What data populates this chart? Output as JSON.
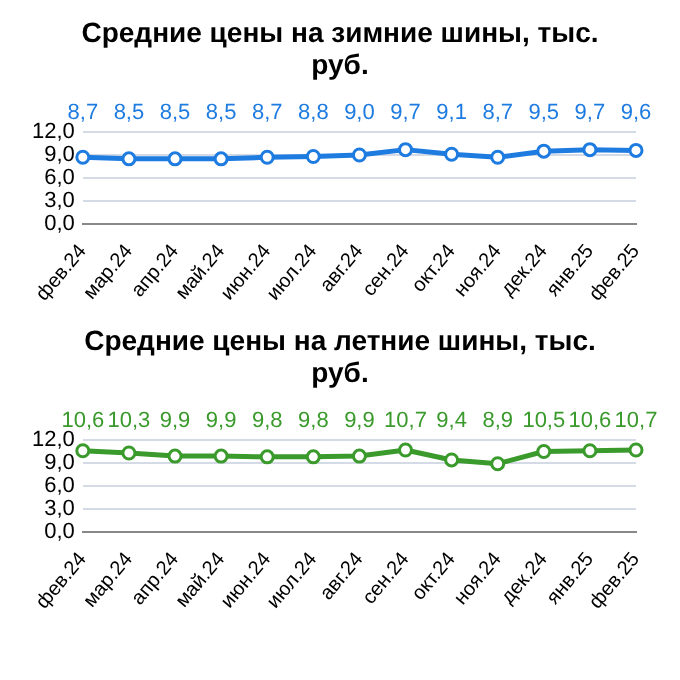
{
  "chart_data": [
    {
      "type": "line",
      "title": "Средние цены на зимние шины, тыс. руб.",
      "categories": [
        "фев.24",
        "мар.24",
        "апр.24",
        "май.24",
        "июн.24",
        "июл.24",
        "авг.24",
        "сен.24",
        "окт.24",
        "ноя.24",
        "дек.24",
        "янв.25",
        "фев.25"
      ],
      "series": [
        {
          "color": "#1e7be0",
          "values": [
            8.7,
            8.5,
            8.5,
            8.5,
            8.7,
            8.8,
            9.0,
            9.7,
            9.1,
            8.7,
            9.5,
            9.7,
            9.6
          ],
          "value_labels": [
            "8,7",
            "8,5",
            "8,5",
            "8,5",
            "8,7",
            "8,8",
            "9,0",
            "9,7",
            "9,1",
            "8,7",
            "9,5",
            "9,7",
            "9,6"
          ]
        }
      ],
      "ylim": [
        0,
        12
      ],
      "yticks": [
        {
          "value": 0,
          "label": "0,0"
        },
        {
          "value": 3,
          "label": "3,0"
        },
        {
          "value": 6,
          "label": "6,0"
        },
        {
          "value": 9,
          "label": "9,0"
        },
        {
          "value": 12,
          "label": "12,0"
        }
      ],
      "grid": "y",
      "marker": "circle",
      "legend": false
    },
    {
      "type": "line",
      "title": "Средние цены на летние шины, тыс. руб.",
      "categories": [
        "фев.24",
        "мар.24",
        "апр.24",
        "май.24",
        "июн.24",
        "июл.24",
        "авг.24",
        "сен.24",
        "окт.24",
        "ноя.24",
        "дек.24",
        "янв.25",
        "фев.25"
      ],
      "series": [
        {
          "color": "#3a9a2c",
          "values": [
            10.6,
            10.3,
            9.9,
            9.9,
            9.8,
            9.8,
            9.9,
            10.7,
            9.4,
            8.9,
            10.5,
            10.6,
            10.7
          ],
          "value_labels": [
            "10,6",
            "10,3",
            "9,9",
            "9,9",
            "9,8",
            "9,8",
            "9,9",
            "10,7",
            "9,4",
            "8,9",
            "10,5",
            "10,6",
            "10,7"
          ]
        }
      ],
      "ylim": [
        0,
        12
      ],
      "yticks": [
        {
          "value": 0,
          "label": "0,0"
        },
        {
          "value": 3,
          "label": "3,0"
        },
        {
          "value": 6,
          "label": "6,0"
        },
        {
          "value": 9,
          "label": "9,0"
        },
        {
          "value": 12,
          "label": "12,0"
        }
      ],
      "grid": "y",
      "marker": "circle",
      "legend": false
    }
  ]
}
